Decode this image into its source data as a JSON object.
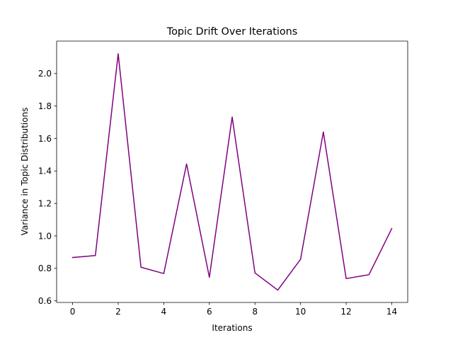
{
  "chart_data": {
    "type": "line",
    "title": "Topic Drift Over Iterations",
    "xlabel": "Iterations",
    "ylabel": "Variance in Topic Distributions",
    "x": [
      0,
      1,
      2,
      3,
      4,
      5,
      6,
      7,
      8,
      9,
      10,
      11,
      12,
      13,
      14
    ],
    "series": [
      {
        "values": [
          0.867,
          0.879,
          2.122,
          0.807,
          0.768,
          1.443,
          0.745,
          1.732,
          0.772,
          0.666,
          0.856,
          1.64,
          0.737,
          0.761,
          1.045
        ],
        "color": "#800080"
      }
    ],
    "xlim": [
      -0.7,
      14.7
    ],
    "ylim": [
      0.59,
      2.2
    ],
    "xticks": [
      0,
      2,
      4,
      6,
      8,
      10,
      12,
      14
    ],
    "xtick_labels": [
      "0",
      "2",
      "4",
      "6",
      "8",
      "10",
      "12",
      "14"
    ],
    "yticks": [
      0.6,
      0.8,
      1.0,
      1.2,
      1.4,
      1.6,
      1.8,
      2.0
    ],
    "ytick_labels": [
      "0.6",
      "0.8",
      "1.0",
      "1.2",
      "1.4",
      "1.6",
      "1.8",
      "2.0"
    ],
    "grid": false,
    "legend": false
  }
}
